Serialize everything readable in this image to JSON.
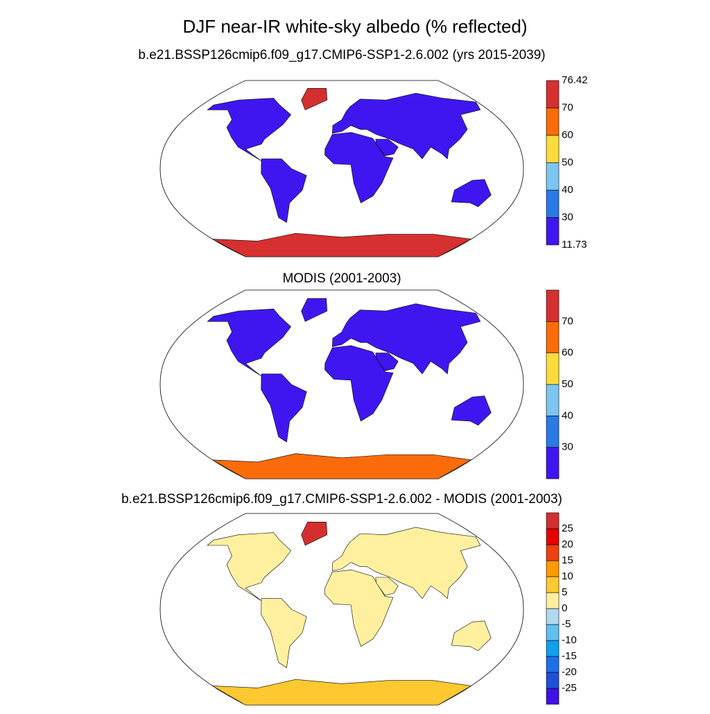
{
  "title": "DJF near-IR white-sky albedo (% reflected)",
  "panels": [
    {
      "title": "b.e21.BSSP126cmip6.f09_g17.CMIP6-SSP1-2.6.002 (yrs 2015-2039)",
      "colorbar": {
        "labels": [
          11.73,
          30,
          40,
          50,
          60,
          70,
          76.42
        ],
        "colors": [
          "#4016f0",
          "#2a7ae8",
          "#7cc5f0",
          "#fcdc3c",
          "#fb6b0a",
          "#d63030"
        ]
      }
    },
    {
      "title": "MODIS (2001-2003)",
      "colorbar": {
        "labels": [
          30,
          40,
          50,
          60,
          70
        ],
        "colors": [
          "#4016f0",
          "#2a7ae8",
          "#7cc5f0",
          "#fcdc3c",
          "#fb6b0a",
          "#d63030"
        ]
      }
    },
    {
      "title": "b.e21.BSSP126cmip6.f09_g17.CMIP6-SSP1-2.6.002 - MODIS (2001-2003)",
      "colorbar": {
        "labels": [
          -25,
          -20,
          -15,
          -10,
          -5,
          0,
          5,
          10,
          15,
          20,
          25
        ],
        "colors": [
          "#4010e8",
          "#2050d8",
          "#1e70e8",
          "#10a0f0",
          "#60c0f0",
          "#b0d8f0",
          "#fff0a0",
          "#fdc830",
          "#ff9900",
          "#f04010",
          "#e80000",
          "#d32f2f"
        ]
      }
    }
  ]
}
